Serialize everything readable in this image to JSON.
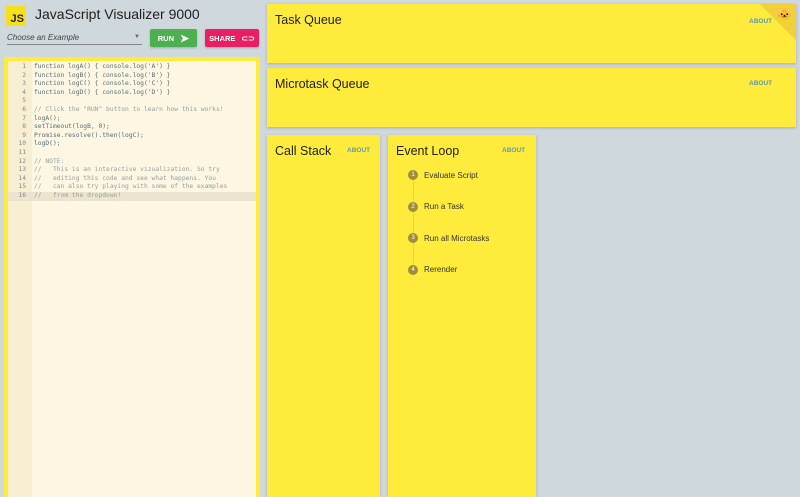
{
  "header": {
    "logo": "JS",
    "title": "JavaScript Visualizer 9000"
  },
  "toolbar": {
    "example_placeholder": "Choose an Example",
    "run_label": "RUN",
    "share_label": "SHARE",
    "colors": {
      "run": "#4caf50",
      "share": "#e91e63"
    }
  },
  "editor": {
    "lines": [
      "function logA() { console.log('A') }",
      "function logB() { console.log('B') }",
      "function logC() { console.log('C') }",
      "function logD() { console.log('D') }",
      "",
      "// Click the \"RUN\" button to learn how this works!",
      "logA();",
      "setTimeout(logB, 0);",
      "Promise.resolve().then(logC);",
      "logD();",
      "",
      "// NOTE:",
      "//   This is an interactive vizualization. So try",
      "//   editing this code and see what happens. You",
      "//   can also try playing with some of the examples",
      "//   from the dropdown!"
    ],
    "line_numbers": [
      "1",
      "2",
      "3",
      "4",
      "5",
      "6",
      "7",
      "8",
      "9",
      "10",
      "11",
      "12",
      "13",
      "14",
      "15",
      "16"
    ],
    "active_line": 16
  },
  "panels": {
    "task_queue": "Task Queue",
    "microtask_queue": "Microtask Queue",
    "call_stack": "Call Stack",
    "event_loop": "Event Loop",
    "about": "ABOUT"
  },
  "event_loop_steps": [
    {
      "n": "1",
      "label": "Evaluate Script"
    },
    {
      "n": "2",
      "label": "Run a Task"
    },
    {
      "n": "3",
      "label": "Run all Microtasks"
    },
    {
      "n": "4",
      "label": "Rerender"
    }
  ],
  "colors": {
    "panel": "#ffeb3b",
    "background": "#cfd8dc"
  }
}
